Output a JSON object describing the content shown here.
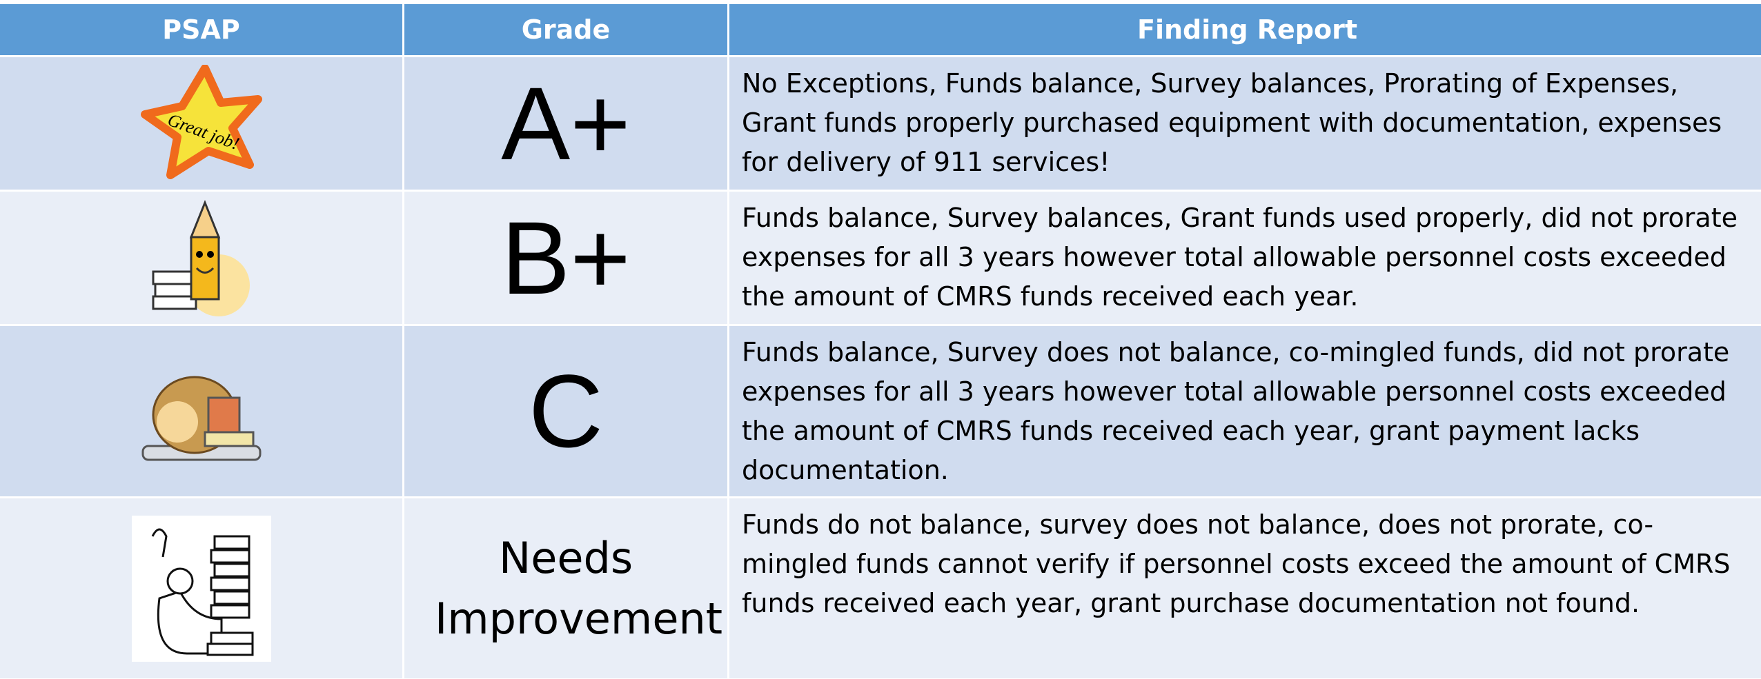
{
  "table": {
    "header": [
      "PSAP",
      "Grade",
      "Finding Report"
    ],
    "rows": [
      {
        "badge": "Great job!",
        "grade": "A+",
        "finding": "No Exceptions, Funds balance, Survey balances, Prorating of Expenses, Grant funds properly purchased equipment with documentation, expenses for delivery of 911 services!"
      },
      {
        "grade": "B+",
        "finding": "Funds balance, Survey balances, Grant funds used properly, did not prorate expenses for all 3 years however total allowable personnel costs exceeded the amount of CMRS funds received each year."
      },
      {
        "grade": "C",
        "finding": "Funds balance, Survey does not balance, co-mingled funds, did not prorate expenses for all 3 years however total allowable personnel costs exceeded the amount of CMRS funds received each year, grant payment lacks documentation."
      },
      {
        "grade": "Needs Improvement",
        "finding": "Funds do not balance, survey does not balance, does not prorate, co-mingled funds cannot verify if personnel costs exceed the amount of CMRS funds received each year, grant purchase documentation not found."
      }
    ]
  }
}
